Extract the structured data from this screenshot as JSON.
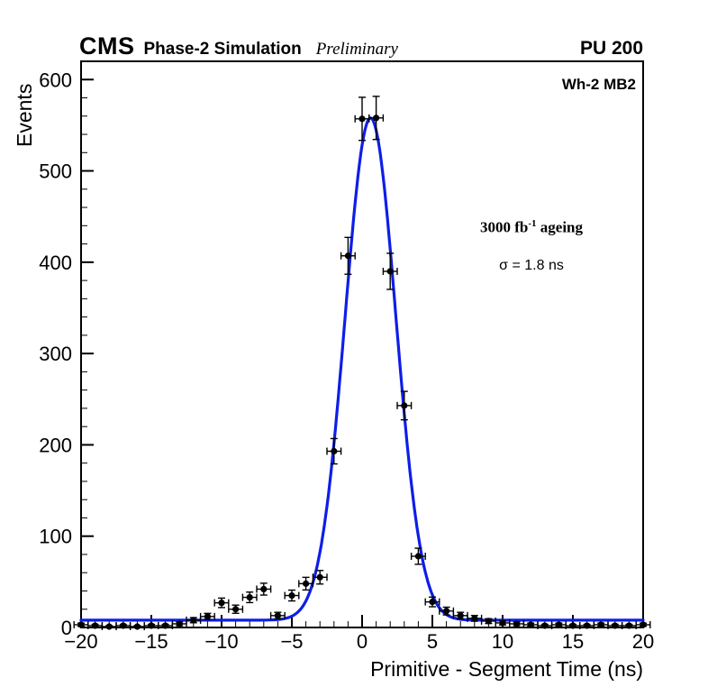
{
  "header": {
    "experiment": "CMS",
    "label": "Phase-2 Simulation",
    "status": "Preliminary",
    "pileup": "PU 200"
  },
  "annotations": {
    "chamber": "Wh-2 MB2",
    "ageing_prefix": "3000 fb",
    "ageing_exponent": "-1",
    "ageing_suffix": " ageing",
    "sigma": "σ = 1.8 ns"
  },
  "chart_data": {
    "type": "scatter",
    "title": "",
    "xlabel": "Primitive - Segment Time (ns)",
    "ylabel": "Events",
    "xlim": [
      -20,
      20
    ],
    "ylim": [
      0,
      620
    ],
    "grid": false,
    "legend_position": "none",
    "x_major_ticks": {
      "values": [
        -20,
        -15,
        -10,
        -5,
        0,
        5,
        10,
        15,
        20
      ],
      "labels": [
        "−20",
        "−15",
        "−10",
        "−5",
        "0",
        "5",
        "10",
        "15",
        "20"
      ]
    },
    "y_major_ticks": {
      "values": [
        0,
        100,
        200,
        300,
        400,
        500,
        600
      ],
      "labels": [
        "0",
        "100",
        "200",
        "300",
        "400",
        "500",
        "600"
      ]
    },
    "x_minor_step": 1,
    "y_minor_step": 20,
    "series": [
      {
        "name": "data",
        "marker": "filled-circle",
        "color": "#000000",
        "x_error": 0.5,
        "y_error": "sqrt",
        "x": [
          -20,
          -19,
          -18,
          -17,
          -16,
          -15,
          -14,
          -13,
          -12,
          -11,
          -10,
          -9,
          -8,
          -7,
          -6,
          -5,
          -4,
          -3,
          -2,
          -1,
          0,
          1,
          2,
          3,
          4,
          5,
          6,
          7,
          8,
          9,
          10,
          11,
          12,
          13,
          14,
          15,
          16,
          17,
          18,
          19,
          20
        ],
        "y": [
          3,
          2,
          1,
          2,
          1,
          2,
          2,
          4,
          8,
          12,
          27,
          20,
          33,
          42,
          13,
          35,
          48,
          55,
          193,
          407,
          557,
          558,
          390,
          243,
          78,
          28,
          18,
          13,
          10,
          7,
          5,
          4,
          3,
          2,
          3,
          2,
          2,
          3,
          2,
          2,
          3
        ]
      }
    ],
    "fit": {
      "name": "gaussian-fit",
      "shape": "gaussian",
      "color": "#0d1ee8",
      "baseline": 8,
      "amplitude": 550,
      "mean": 0.6,
      "sigma": 1.8
    }
  }
}
